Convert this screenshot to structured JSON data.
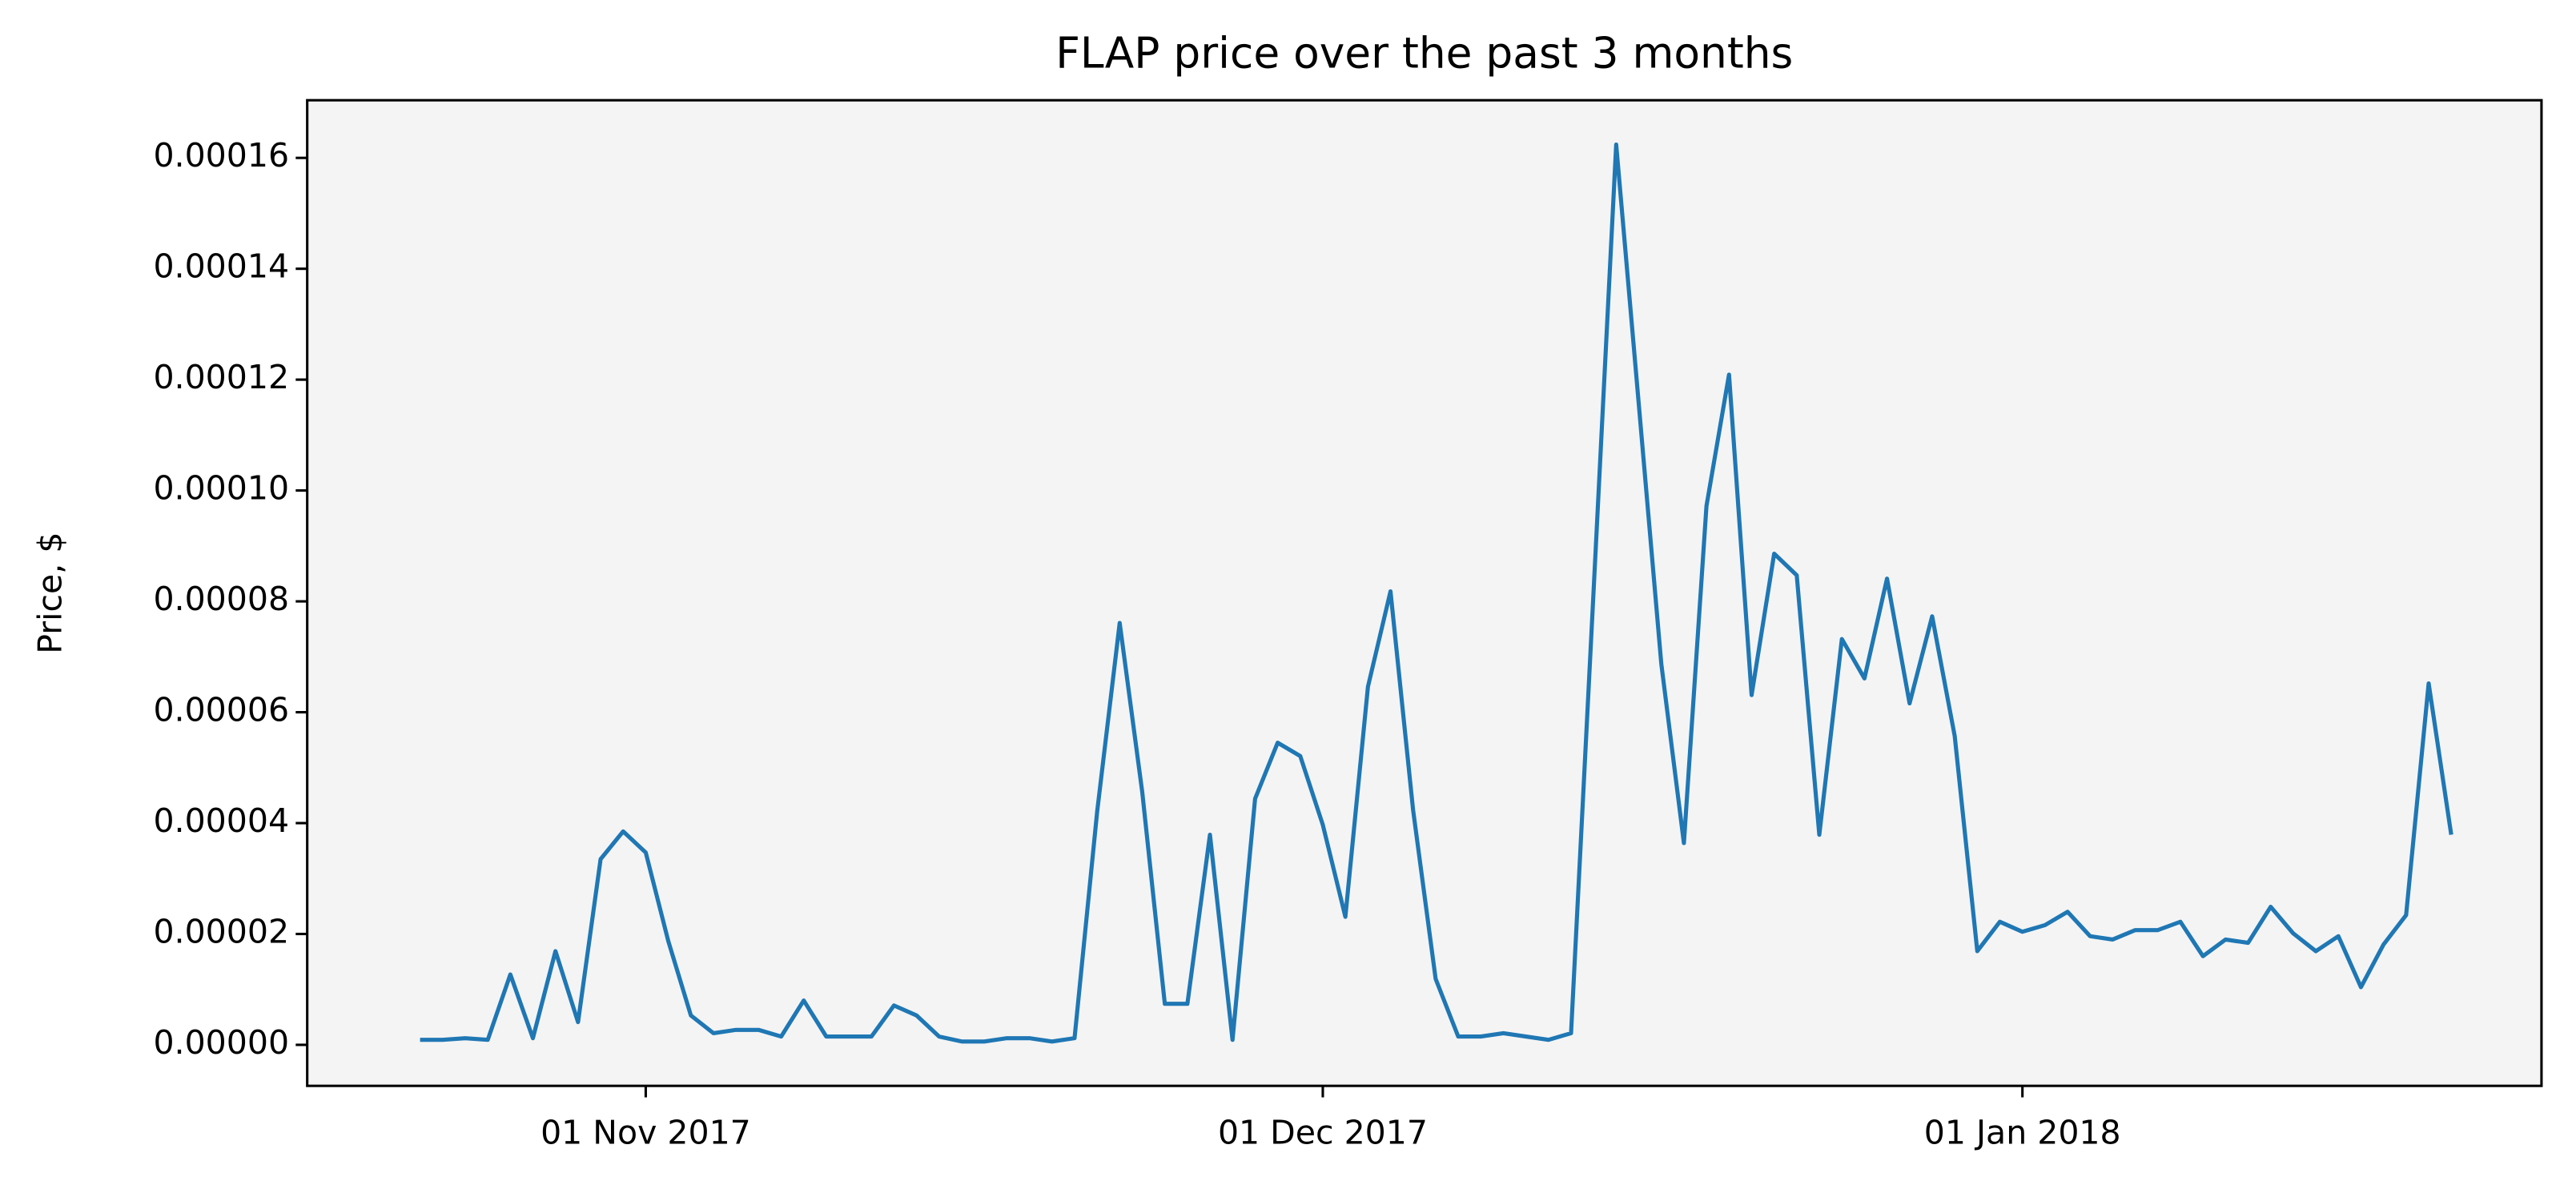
{
  "chart_data": {
    "type": "line",
    "title": "FLAP price over the past 3 months",
    "y_label": "Price, $",
    "x": [
      "2017-10-22",
      "2017-10-23",
      "2017-10-24",
      "2017-10-25",
      "2017-10-26",
      "2017-10-27",
      "2017-10-28",
      "2017-10-29",
      "2017-10-30",
      "2017-10-31",
      "2017-11-01",
      "2017-11-02",
      "2017-11-03",
      "2017-11-04",
      "2017-11-05",
      "2017-11-06",
      "2017-11-07",
      "2017-11-08",
      "2017-11-09",
      "2017-11-10",
      "2017-11-11",
      "2017-11-12",
      "2017-11-13",
      "2017-11-14",
      "2017-11-15",
      "2017-11-16",
      "2017-11-17",
      "2017-11-18",
      "2017-11-19",
      "2017-11-20",
      "2017-11-21",
      "2017-11-22",
      "2017-11-23",
      "2017-11-24",
      "2017-11-25",
      "2017-11-26",
      "2017-11-27",
      "2017-11-28",
      "2017-11-29",
      "2017-11-30",
      "2017-12-01",
      "2017-12-02",
      "2017-12-03",
      "2017-12-04",
      "2017-12-05",
      "2017-12-06",
      "2017-12-07",
      "2017-12-08",
      "2017-12-09",
      "2017-12-10",
      "2017-12-11",
      "2017-12-12",
      "2017-12-13",
      "2017-12-14",
      "2017-12-15",
      "2017-12-16",
      "2017-12-17",
      "2017-12-18",
      "2017-12-19",
      "2017-12-20",
      "2017-12-21",
      "2017-12-22",
      "2017-12-23",
      "2017-12-24",
      "2017-12-25",
      "2017-12-26",
      "2017-12-27",
      "2017-12-28",
      "2017-12-29",
      "2017-12-30",
      "2017-12-31",
      "2018-01-01",
      "2018-01-02",
      "2018-01-03",
      "2018-01-04",
      "2018-01-05",
      "2018-01-06",
      "2018-01-07",
      "2018-01-08",
      "2018-01-09",
      "2018-01-10",
      "2018-01-11",
      "2018-01-12",
      "2018-01-13",
      "2018-01-14",
      "2018-01-15",
      "2018-01-16",
      "2018-01-17",
      "2018-01-18",
      "2018-01-19",
      "2018-01-20"
    ],
    "series": [
      {
        "color": "#1f77b4",
        "values": [
          9e-07,
          9e-07,
          1.2e-06,
          9e-07,
          1.27e-05,
          1.2e-06,
          1.69e-05,
          4.1e-06,
          3.35e-05,
          3.85e-05,
          3.47e-05,
          1.87e-05,
          5.3e-06,
          2.1e-06,
          2.7e-06,
          2.7e-06,
          1.5e-06,
          8e-06,
          1.5e-06,
          1.5e-06,
          1.5e-06,
          7.1e-06,
          5.3e-06,
          1.5e-06,
          6e-07,
          6e-07,
          1.2e-06,
          1.2e-06,
          6e-07,
          1.2e-06,
          4.2e-05,
          7.61e-05,
          4.56e-05,
          7.4e-06,
          7.4e-06,
          3.79e-05,
          9e-07,
          4.44e-05,
          5.45e-05,
          5.21e-05,
          3.97e-05,
          2.31e-05,
          6.46e-05,
          8.18e-05,
          4.24e-05,
          1.19e-05,
          1.5e-06,
          1.5e-06,
          2.1e-06,
          1.5e-06,
          9e-07,
          2.1e-06,
          8.2e-05,
          0.0001624,
          0.0001156,
          6.87e-05,
          3.64e-05,
          9.72e-05,
          0.0001209,
          6.31e-05,
          8.86e-05,
          8.47e-05,
          3.79e-05,
          7.32e-05,
          6.61e-05,
          8.41e-05,
          6.16e-05,
          7.73e-05,
          5.57e-05,
          1.69e-05,
          2.22e-05,
          2.04e-05,
          2.16e-05,
          2.4e-05,
          1.96e-05,
          1.9e-05,
          2.07e-05,
          2.07e-05,
          2.22e-05,
          1.6e-05,
          1.9e-05,
          1.84e-05,
          2.49e-05,
          2.01e-05,
          1.69e-05,
          1.96e-05,
          1.04e-05,
          1.81e-05,
          2.34e-05,
          6.52e-05,
          3.79e-05
        ]
      }
    ],
    "xlim": [
      "2017-10-17",
      "2018-01-24"
    ],
    "xticks": [
      {
        "value": "2017-11-01",
        "label": "01 Nov 2017"
      },
      {
        "value": "2017-12-01",
        "label": "01 Dec 2017"
      },
      {
        "value": "2018-01-01",
        "label": "01 Jan 2018"
      }
    ],
    "ylim": [
      -7.4e-06,
      0.0001704
    ],
    "yticks": [
      {
        "value": 0,
        "label": "0.00000"
      },
      {
        "value": 2e-05,
        "label": "0.00002"
      },
      {
        "value": 4e-05,
        "label": "0.00004"
      },
      {
        "value": 6e-05,
        "label": "0.00006"
      },
      {
        "value": 8e-05,
        "label": "0.00008"
      },
      {
        "value": 0.0001,
        "label": "0.00010"
      },
      {
        "value": 0.00012,
        "label": "0.00012"
      },
      {
        "value": 0.00014,
        "label": "0.00014"
      },
      {
        "value": 0.00016,
        "label": "0.00016"
      }
    ],
    "plot_background": "#f4f4f4"
  }
}
